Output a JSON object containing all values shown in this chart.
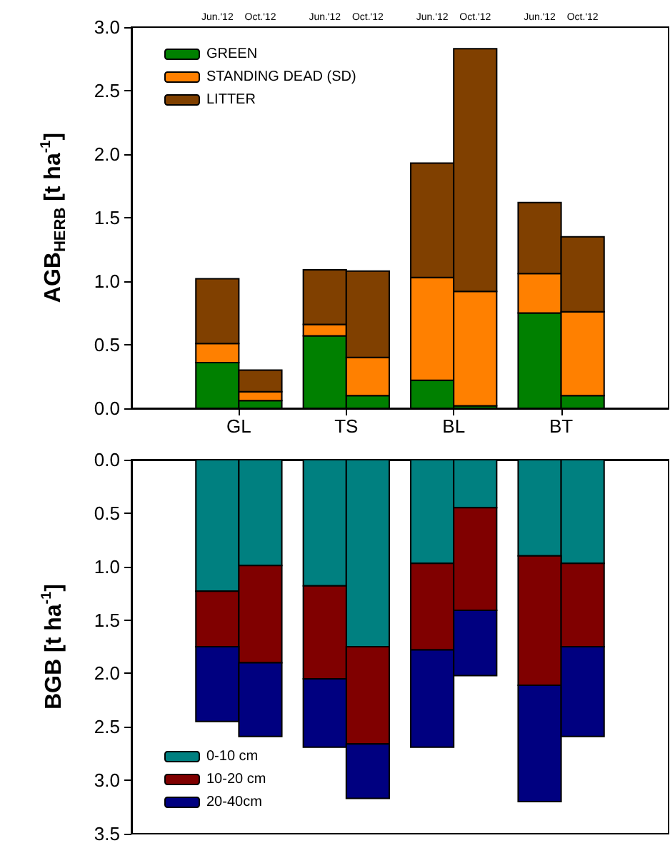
{
  "chart_data": [
    {
      "type": "bar",
      "stacked": true,
      "ylabel": "AGB$_{HERB}$ [t ha$^{-1}$]",
      "categories": [
        "Jun.'12",
        "Oct.'12",
        "Jun.'12",
        "Oct.'12",
        "Jun.'12",
        "Oct.'12",
        "Jun.'12",
        "Oct.'12"
      ],
      "annotations": [
        "GL",
        "TS",
        "BL",
        "BT"
      ],
      "series": [
        {
          "name": "GREEN",
          "color": "#008000",
          "values": [
            0.36,
            0.06,
            0.57,
            0.1,
            0.22,
            0.02,
            0.75,
            0.1
          ]
        },
        {
          "name": "STANDING DEAD (SD)",
          "color": "#ff8000",
          "values": [
            0.15,
            0.07,
            0.09,
            0.3,
            0.81,
            0.9,
            0.31,
            0.66
          ]
        },
        {
          "name": "LITTER",
          "color": "#804000",
          "values": [
            0.51,
            0.17,
            0.43,
            0.68,
            0.9,
            1.91,
            0.56,
            0.59
          ]
        }
      ],
      "ylim": [
        0,
        3
      ],
      "yticks": [
        {
          "value": 0,
          "label": "0.0"
        },
        0.5,
        {
          "value": 1,
          "label": "1.0"
        },
        1.5,
        {
          "value": 2,
          "label": "2.0"
        },
        2.5,
        {
          "value": 3,
          "label": "3.0"
        }
      ],
      "grid": false,
      "legend": "top left"
    },
    {
      "type": "bar",
      "stacked": true,
      "ylabel": "BGB [t ha$^{-1}$]",
      "categories": [
        null,
        null,
        null,
        null,
        null,
        null,
        null,
        null
      ],
      "series": [
        {
          "name": "0-10 cm",
          "color": "#008080",
          "values": [
            1.23,
            0.99,
            1.18,
            1.75,
            0.97,
            0.45,
            0.9,
            0.97
          ]
        },
        {
          "name": "10-20 cm",
          "color": "#800000",
          "values": [
            0.52,
            0.91,
            0.87,
            0.91,
            0.81,
            0.96,
            1.21,
            0.78
          ]
        },
        {
          "name": "20-40cm",
          "color": "#000080",
          "values": [
            0.7,
            0.69,
            0.64,
            0.51,
            0.91,
            0.61,
            1.09,
            0.84
          ]
        }
      ],
      "ylim": [
        3.5,
        0
      ],
      "yticks": [
        {
          "value": 0,
          "label": "0.0"
        },
        0.5,
        {
          "value": 1,
          "label": "1.0"
        },
        1.5,
        {
          "value": 2,
          "label": "2.0"
        },
        2.5,
        {
          "value": 3,
          "label": "3.0"
        },
        3.5
      ],
      "grid": false,
      "legend": "bottom left",
      "tick_labels": "y"
    }
  ]
}
